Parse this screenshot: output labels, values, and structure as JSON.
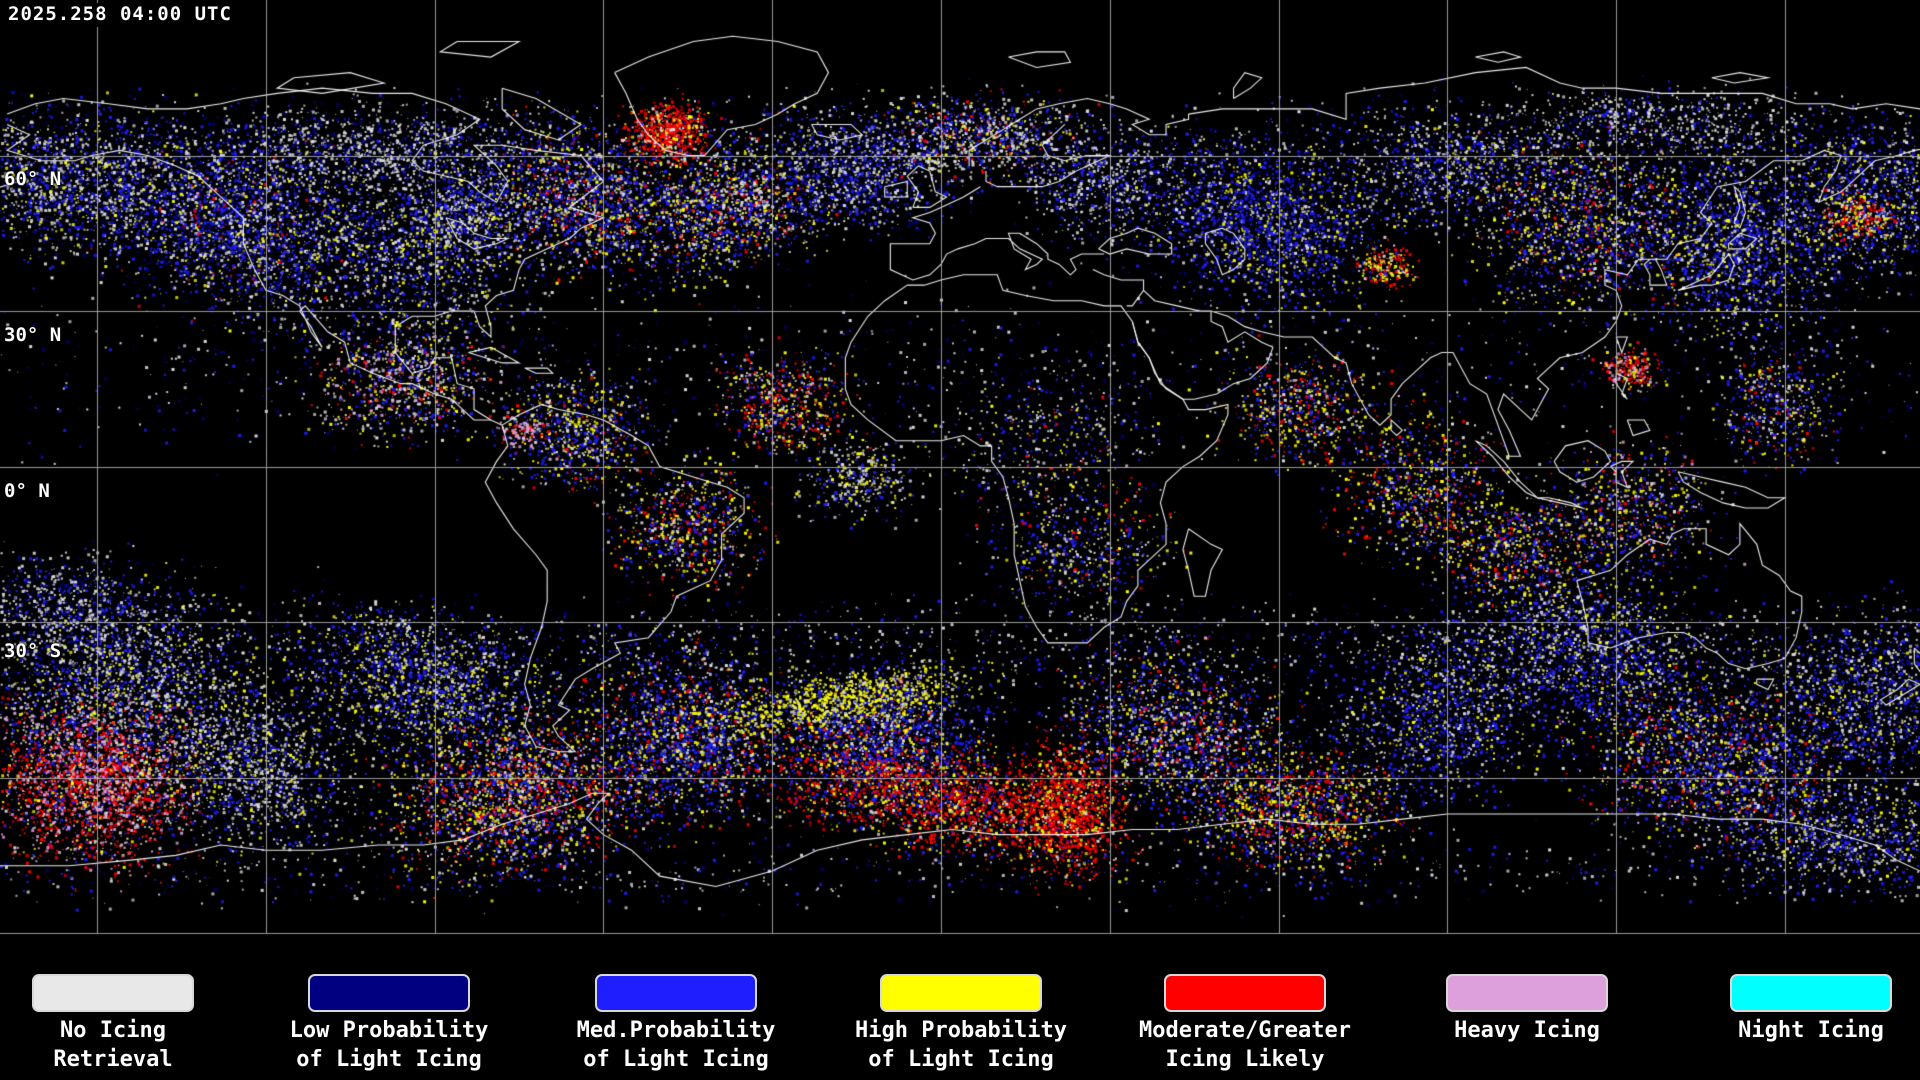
{
  "map": {
    "timestamp": "2025.258 04:00 UTC",
    "lat_labels": [
      {
        "text": "60° N"
      },
      {
        "text": "30° N"
      },
      {
        "text": "0° N"
      },
      {
        "text": "30° S"
      }
    ]
  },
  "legend": {
    "items": [
      {
        "line1": "No Icing",
        "line2": "Retrieval",
        "color": "#e8e8e8"
      },
      {
        "line1": "Low Probability",
        "line2": "of Light Icing",
        "color": "#000080"
      },
      {
        "line1": "Med.Probability",
        "line2": "of Light Icing",
        "color": "#1e1eff"
      },
      {
        "line1": "High Probability",
        "line2": "of Light Icing",
        "color": "#ffff00"
      },
      {
        "line1": "Moderate/Greater",
        "line2": "Icing Likely",
        "color": "#ff0000"
      },
      {
        "line1": "Heavy Icing",
        "line2": "",
        "color": "#dda0dd"
      },
      {
        "line1": "Night Icing",
        "line2": "",
        "color": "#00ffff"
      }
    ]
  },
  "colors": {
    "background": "#000000",
    "grid": "#b4b4b4",
    "coastline": "#ffffff",
    "no_icing": "#dcdcdc",
    "low_prob": "#000082",
    "med_prob": "#1e1eff",
    "high_prob": "#ffff00",
    "moderate": "#ff0000",
    "heavy": "#dda0dd",
    "night": "#00ffff"
  }
}
